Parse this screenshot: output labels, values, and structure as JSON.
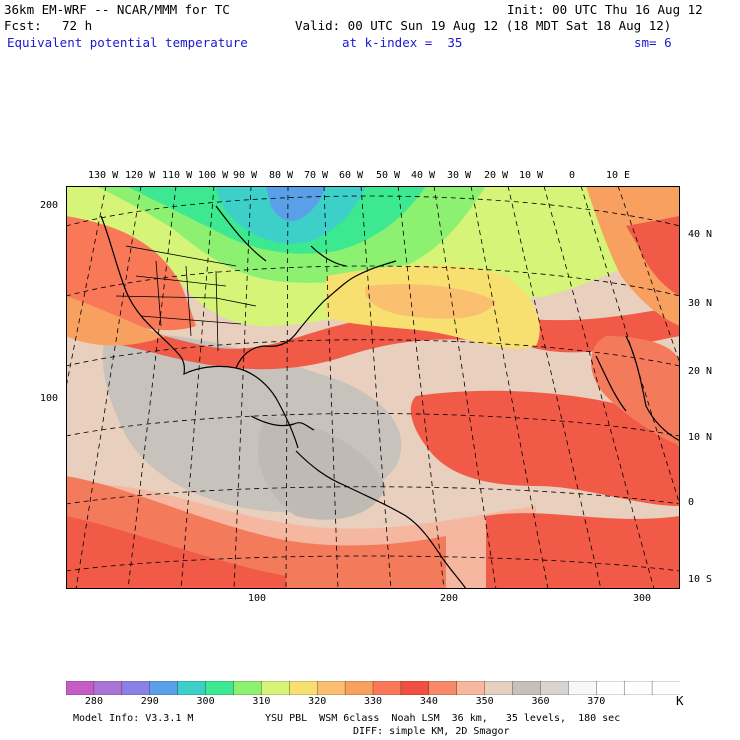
{
  "header": {
    "model": "36km EM-WRF -- NCAR/MMM for TC",
    "init": "Init: 00 UTC Thu 16 Aug 12",
    "fcst_label": "Fcst:",
    "fcst_value": "72 h",
    "valid": "Valid: 00 UTC Sun 19 Aug 12 (18 MDT Sat 18 Aug 12)",
    "field": "Equivalent potential temperature",
    "level": "at k-index =  35",
    "smooth": "sm= 6"
  },
  "map": {
    "lon_labels": [
      "130 W",
      "120 W",
      "110 W",
      "100 W",
      "90 W",
      "80 W",
      "70 W",
      "60 W",
      "50 W",
      "40 W",
      "30 W",
      "20 W",
      "10 W",
      "0",
      "10 E"
    ],
    "lat_labels": [
      "40 N",
      "30 N",
      "20 N",
      "10 N",
      "0",
      "10 S"
    ],
    "grid_y_labels": [
      "200",
      "100"
    ],
    "grid_x_labels": [
      "100",
      "200",
      "300"
    ]
  },
  "colorbar": {
    "colors": [
      "#c65cc6",
      "#a874d6",
      "#8a80e8",
      "#5aa0e8",
      "#3cd0c8",
      "#3ce890",
      "#8cf070",
      "#d6f478",
      "#f8e070",
      "#fac070",
      "#f8a060",
      "#f87858",
      "#f05040",
      "#f88868",
      "#f8b8a0",
      "#e8d0c0",
      "#c8c0b8",
      "#d8d4d0",
      "#f8f8f8",
      "#ffffff",
      "#ffffff",
      "#ffffff"
    ],
    "tick_labels": [
      "280",
      "290",
      "300",
      "310",
      "320",
      "330",
      "340",
      "350",
      "360",
      "370"
    ],
    "unit": "K"
  },
  "footer": {
    "line1_left": "Model Info: V3.3.1 M",
    "line1_right": "YSU PBL  WSM 6class  Noah LSM  36 km,   35 levels,  180 sec",
    "line2": "DIFF: simple KM, 2D Smagor"
  }
}
